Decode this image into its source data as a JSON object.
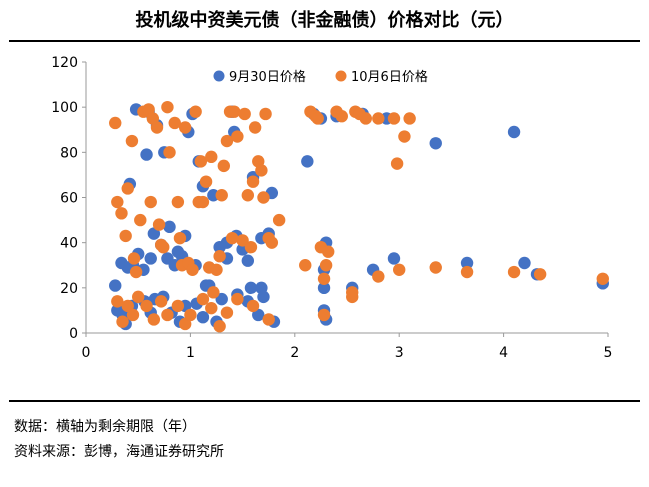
{
  "title": "投机级中资美元债（非金融债）价格对比（元）",
  "notes": {
    "line1": "数据：横轴为剩余期限（年）",
    "line2": "资料来源：彭博，海通证券研究所"
  },
  "colors": {
    "series_sep30": "#4472C4",
    "series_oct6": "#ED7D31",
    "axis": "#999999"
  },
  "chart_data": {
    "type": "scatter",
    "title": "",
    "xlabel": "",
    "ylabel": "",
    "xlim": [
      0,
      5
    ],
    "ylim": [
      0,
      120
    ],
    "x_ticks": [
      "0",
      "1",
      "2",
      "3",
      "4",
      "5"
    ],
    "y_ticks": [
      "0",
      "20",
      "40",
      "60",
      "80",
      "100",
      "120"
    ],
    "grid": false,
    "legend": "top-center",
    "series": [
      {
        "name": "9月30日价格",
        "color": "#4472C4",
        "points": [
          [
            0.28,
            21
          ],
          [
            0.34,
            31
          ],
          [
            0.5,
            35
          ],
          [
            0.62,
            33
          ],
          [
            0.55,
            28
          ],
          [
            0.4,
            29
          ],
          [
            0.45,
            30
          ],
          [
            0.58,
            79
          ],
          [
            0.42,
            66
          ],
          [
            0.48,
            99
          ],
          [
            0.6,
            98
          ],
          [
            0.68,
            92
          ],
          [
            0.75,
            80
          ],
          [
            0.8,
            47
          ],
          [
            0.65,
            44
          ],
          [
            0.72,
            39
          ],
          [
            0.78,
            33
          ],
          [
            0.85,
            30
          ],
          [
            0.92,
            34
          ],
          [
            0.95,
            43
          ],
          [
            1.0,
            30
          ],
          [
            0.98,
            89
          ],
          [
            1.02,
            97
          ],
          [
            1.08,
            76
          ],
          [
            1.12,
            65
          ],
          [
            1.15,
            21
          ],
          [
            1.22,
            61
          ],
          [
            1.28,
            38
          ],
          [
            1.35,
            33
          ],
          [
            1.4,
            98
          ],
          [
            1.42,
            89
          ],
          [
            1.44,
            43
          ],
          [
            1.5,
            37
          ],
          [
            1.55,
            32
          ],
          [
            1.58,
            20
          ],
          [
            1.6,
            69
          ],
          [
            1.68,
            42
          ],
          [
            1.75,
            44
          ],
          [
            1.78,
            62
          ],
          [
            1.68,
            20
          ],
          [
            1.35,
            40
          ],
          [
            2.12,
            76
          ],
          [
            2.18,
            97
          ],
          [
            2.25,
            95
          ],
          [
            2.28,
            28
          ],
          [
            2.3,
            40
          ],
          [
            2.28,
            20
          ],
          [
            2.4,
            96
          ],
          [
            2.65,
            97
          ],
          [
            2.55,
            20
          ],
          [
            2.75,
            28
          ],
          [
            2.88,
            95
          ],
          [
            2.95,
            33
          ],
          [
            3.35,
            84
          ],
          [
            3.65,
            31
          ],
          [
            4.1,
            89
          ],
          [
            4.2,
            31
          ],
          [
            4.32,
            26
          ],
          [
            4.95,
            22
          ],
          [
            0.88,
            36
          ],
          [
            1.05,
            30
          ],
          [
            1.65,
            8
          ],
          [
            1.8,
            5
          ],
          [
            0.3,
            10
          ],
          [
            0.35,
            8
          ],
          [
            0.38,
            4
          ],
          [
            0.44,
            12
          ],
          [
            0.56,
            14
          ],
          [
            0.62,
            9
          ],
          [
            0.66,
            15
          ],
          [
            0.74,
            16
          ],
          [
            0.82,
            9
          ],
          [
            0.9,
            5
          ],
          [
            0.95,
            12
          ],
          [
            1.06,
            13
          ],
          [
            1.12,
            7
          ],
          [
            1.18,
            21
          ],
          [
            1.25,
            5
          ],
          [
            1.3,
            15
          ],
          [
            1.45,
            17
          ],
          [
            1.55,
            14
          ],
          [
            1.7,
            16
          ],
          [
            2.28,
            10
          ],
          [
            2.3,
            6
          ]
        ]
      },
      {
        "name": "10月6日价格",
        "color": "#ED7D31",
        "points": [
          [
            0.28,
            93
          ],
          [
            0.3,
            58
          ],
          [
            0.34,
            53
          ],
          [
            0.38,
            43
          ],
          [
            0.4,
            64
          ],
          [
            0.44,
            85
          ],
          [
            0.46,
            33
          ],
          [
            0.48,
            27
          ],
          [
            0.52,
            50
          ],
          [
            0.55,
            98
          ],
          [
            0.6,
            99
          ],
          [
            0.62,
            58
          ],
          [
            0.64,
            95
          ],
          [
            0.68,
            91
          ],
          [
            0.7,
            48
          ],
          [
            0.72,
            39
          ],
          [
            0.74,
            38
          ],
          [
            0.78,
            100
          ],
          [
            0.8,
            80
          ],
          [
            0.85,
            93
          ],
          [
            0.88,
            58
          ],
          [
            0.9,
            42
          ],
          [
            0.92,
            30
          ],
          [
            0.95,
            91
          ],
          [
            0.98,
            31
          ],
          [
            1.02,
            28
          ],
          [
            1.05,
            98
          ],
          [
            1.08,
            58
          ],
          [
            1.1,
            76
          ],
          [
            1.12,
            58
          ],
          [
            1.15,
            67
          ],
          [
            1.18,
            29
          ],
          [
            1.2,
            78
          ],
          [
            1.22,
            18
          ],
          [
            1.25,
            28
          ],
          [
            1.28,
            34
          ],
          [
            1.3,
            61
          ],
          [
            1.32,
            74
          ],
          [
            1.35,
            85
          ],
          [
            1.38,
            98
          ],
          [
            1.4,
            42
          ],
          [
            1.42,
            98
          ],
          [
            1.45,
            87
          ],
          [
            1.5,
            41
          ],
          [
            1.52,
            97
          ],
          [
            1.55,
            61
          ],
          [
            1.58,
            38
          ],
          [
            1.6,
            67
          ],
          [
            1.62,
            91
          ],
          [
            1.65,
            76
          ],
          [
            1.68,
            72
          ],
          [
            1.7,
            60
          ],
          [
            1.72,
            97
          ],
          [
            1.75,
            42
          ],
          [
            1.78,
            40
          ],
          [
            1.85,
            50
          ],
          [
            2.1,
            30
          ],
          [
            2.15,
            98
          ],
          [
            2.2,
            96
          ],
          [
            2.22,
            95
          ],
          [
            2.25,
            38
          ],
          [
            2.28,
            24
          ],
          [
            2.3,
            30
          ],
          [
            2.32,
            36
          ],
          [
            2.4,
            98
          ],
          [
            2.45,
            96
          ],
          [
            2.58,
            98
          ],
          [
            2.62,
            97
          ],
          [
            2.68,
            95
          ],
          [
            2.8,
            95
          ],
          [
            2.95,
            95
          ],
          [
            2.98,
            75
          ],
          [
            3.05,
            87
          ],
          [
            3.1,
            95
          ],
          [
            2.55,
            16
          ],
          [
            2.8,
            25
          ],
          [
            3.0,
            28
          ],
          [
            3.35,
            29
          ],
          [
            3.65,
            27
          ],
          [
            4.1,
            27
          ],
          [
            4.35,
            26
          ],
          [
            4.95,
            24
          ],
          [
            0.3,
            14
          ],
          [
            0.35,
            5
          ],
          [
            0.4,
            12
          ],
          [
            0.45,
            8
          ],
          [
            0.5,
            16
          ],
          [
            0.58,
            12
          ],
          [
            0.65,
            6
          ],
          [
            0.72,
            14
          ],
          [
            0.78,
            8
          ],
          [
            0.88,
            12
          ],
          [
            0.95,
            4
          ],
          [
            1.0,
            8
          ],
          [
            1.12,
            15
          ],
          [
            1.2,
            11
          ],
          [
            1.28,
            3
          ],
          [
            1.35,
            9
          ],
          [
            1.45,
            15
          ],
          [
            1.6,
            12
          ],
          [
            1.75,
            6
          ],
          [
            2.28,
            8
          ],
          [
            2.55,
            18
          ]
        ]
      }
    ]
  }
}
